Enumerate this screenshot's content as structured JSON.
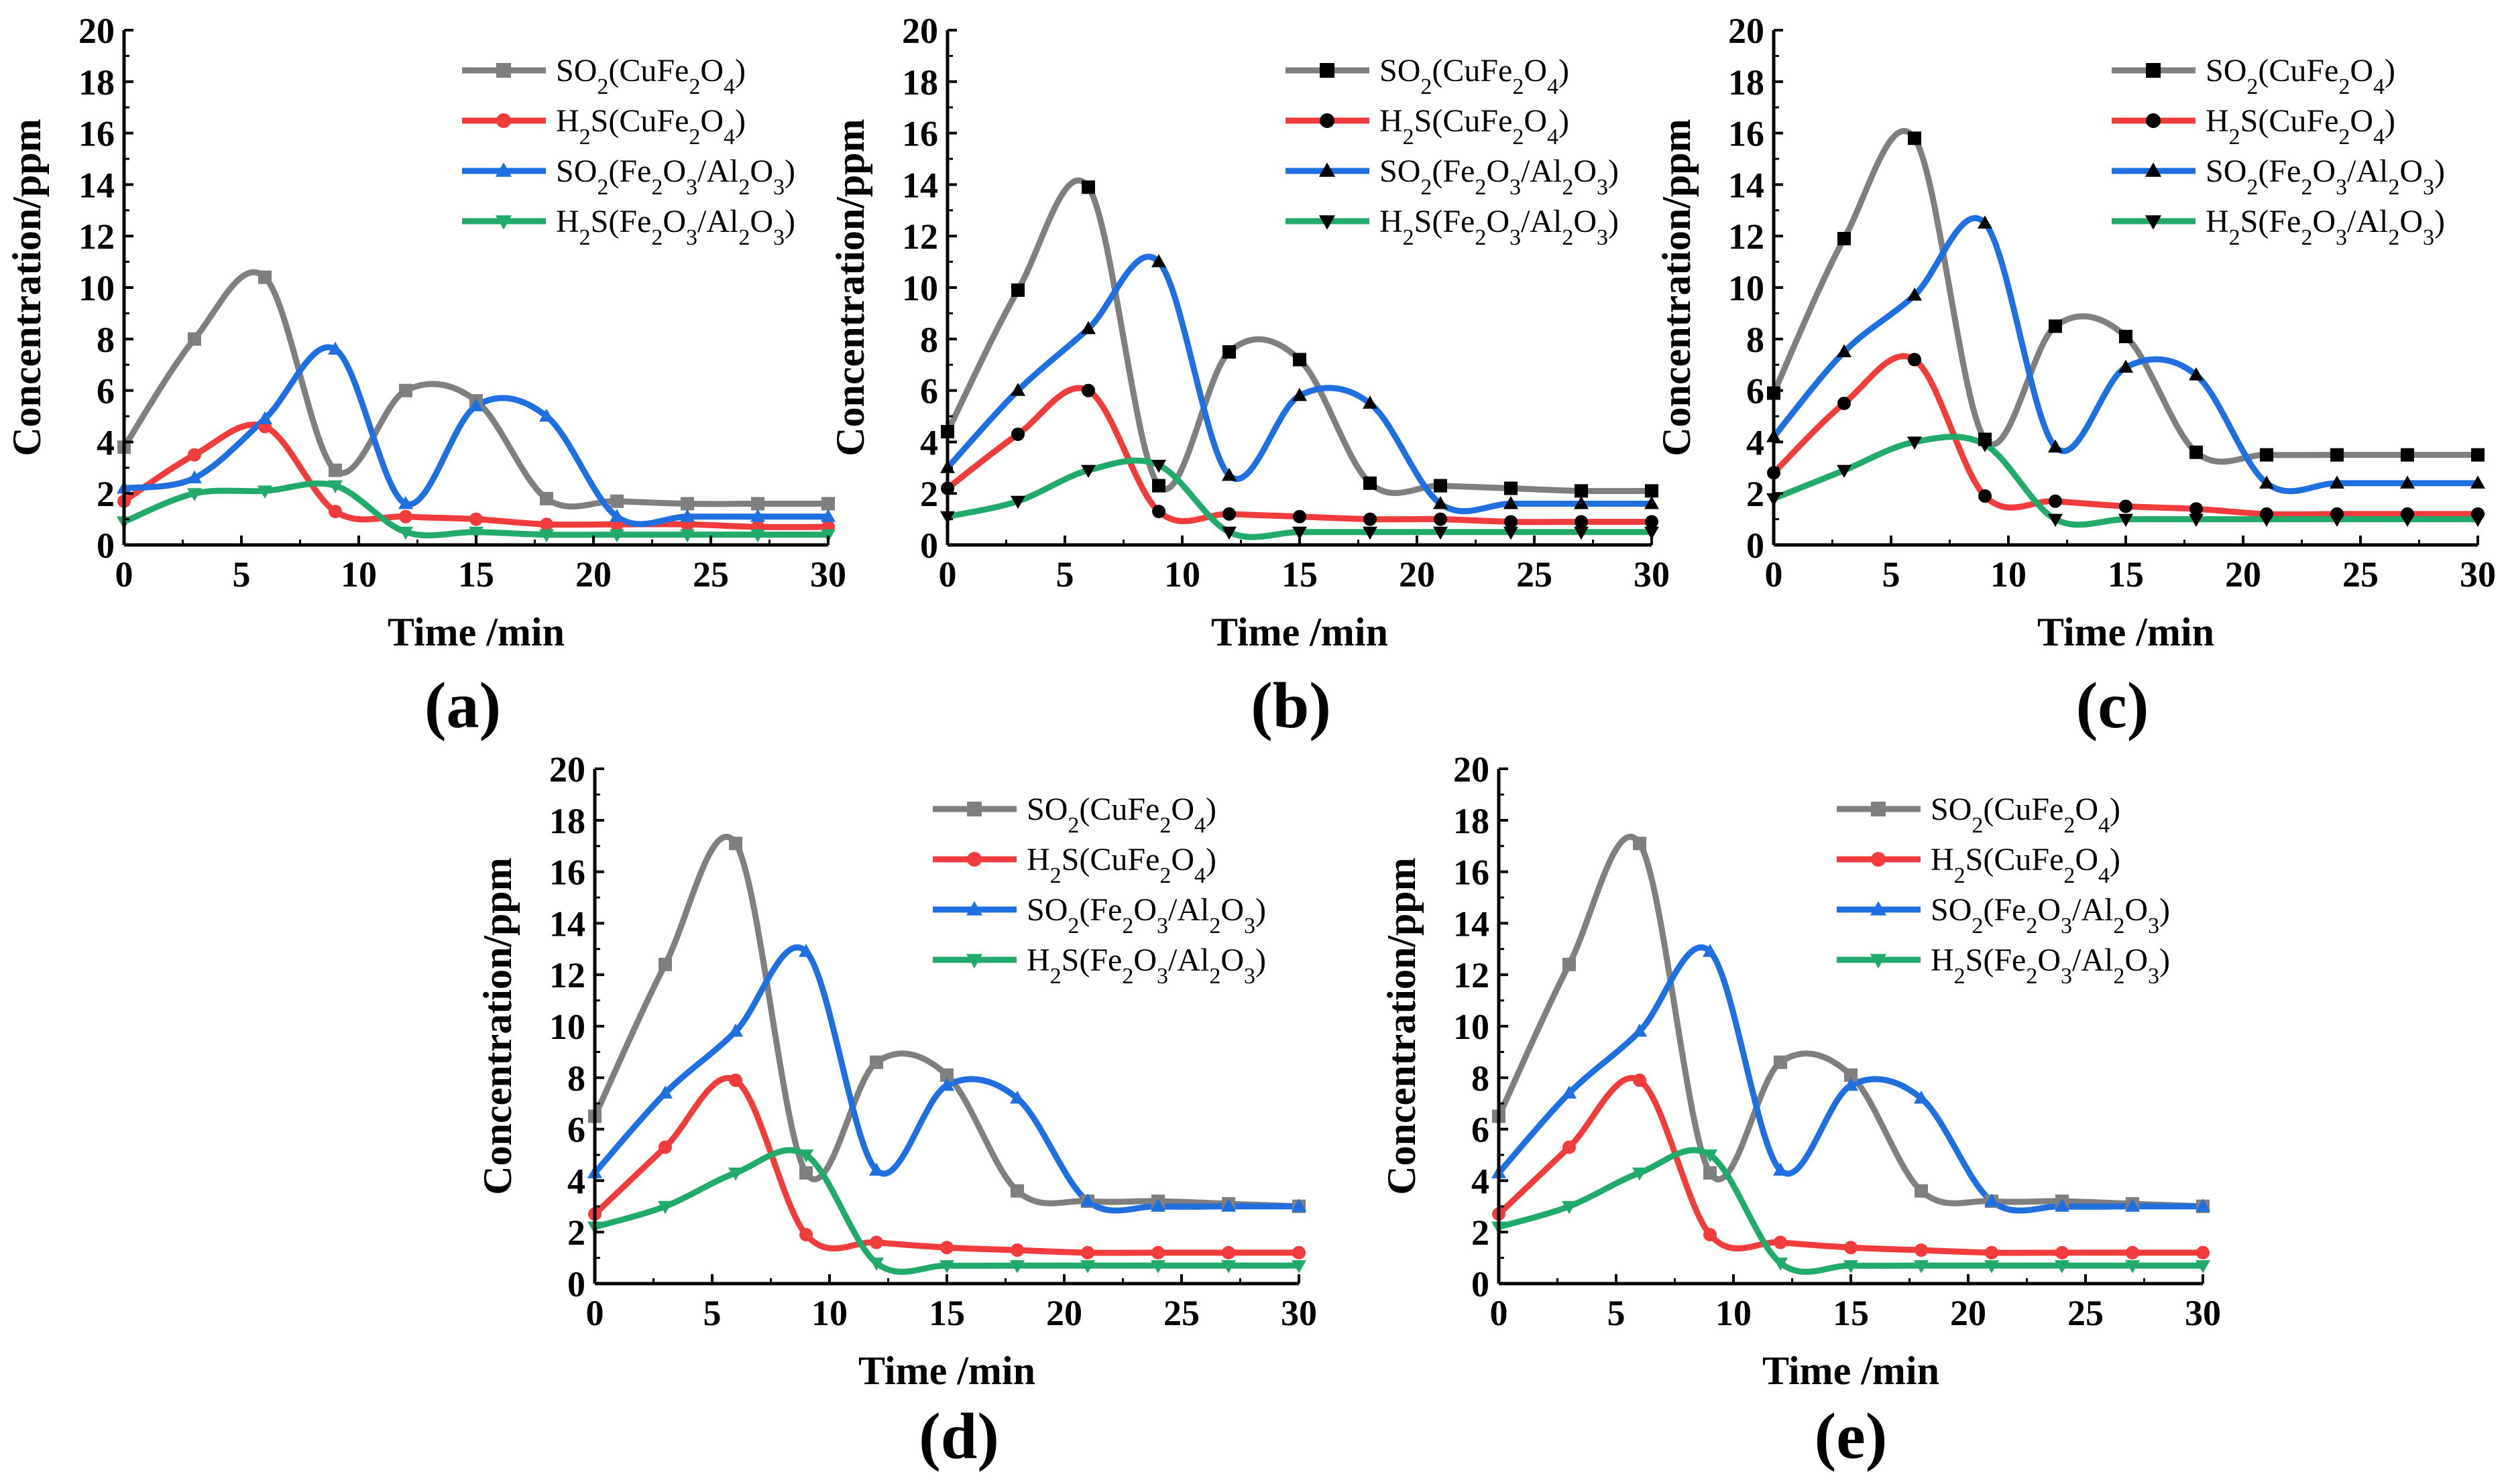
{
  "colors": {
    "SO2(CuFe2O4)": "#7f7f7f",
    "H2S(CuFe2O4)": "#f03c3c",
    "SO2(Fe2O3/Al2O3)": "#1f6fe0",
    "H2S(Fe2O3/Al2O3)": "#22aa6a"
  },
  "markers": {
    "SO2(CuFe2O4)": "square",
    "H2S(CuFe2O4)": "circle",
    "SO2(Fe2O3/Al2O3)": "triangle-up",
    "H2S(Fe2O3/Al2O3)": "triangle-down"
  },
  "chart_data": [
    {
      "panel": "(a)",
      "type": "line",
      "marker_style": "colored",
      "xlabel": "Time /min",
      "ylabel": "Concentration/ppm",
      "xlim": [
        0,
        30
      ],
      "ylim": [
        0,
        20
      ],
      "xticks": [
        0,
        5,
        10,
        15,
        20,
        25,
        30
      ],
      "yticks": [
        0,
        2,
        4,
        6,
        8,
        10,
        12,
        14,
        16,
        18,
        20
      ],
      "legend": "top-right",
      "x": [
        0,
        3,
        6,
        9,
        12,
        15,
        18,
        21,
        24,
        27,
        30
      ],
      "series": [
        {
          "name": "SO2(CuFe2O4)",
          "values": [
            3.8,
            8.0,
            10.4,
            2.9,
            6.0,
            5.6,
            1.8,
            1.7,
            1.6,
            1.6,
            1.6
          ]
        },
        {
          "name": "H2S(CuFe2O4)",
          "values": [
            1.7,
            3.5,
            4.6,
            1.3,
            1.1,
            1.0,
            0.8,
            0.8,
            0.8,
            0.7,
            0.7
          ]
        },
        {
          "name": "SO2(Fe2O3/Al2O3)",
          "values": [
            2.2,
            2.6,
            4.9,
            7.6,
            1.6,
            5.4,
            5.0,
            1.1,
            1.1,
            1.1,
            1.1
          ]
        },
        {
          "name": "H2S(Fe2O3/Al2O3)",
          "values": [
            0.9,
            2.0,
            2.1,
            2.3,
            0.5,
            0.5,
            0.4,
            0.4,
            0.4,
            0.4,
            0.4
          ]
        }
      ]
    },
    {
      "panel": "(b)",
      "type": "line",
      "marker_style": "black",
      "xlabel": "Time /min",
      "ylabel": "Concentration/ppm",
      "xlim": [
        0,
        30
      ],
      "ylim": [
        0,
        20
      ],
      "xticks": [
        0,
        5,
        10,
        15,
        20,
        25,
        30
      ],
      "yticks": [
        0,
        2,
        4,
        6,
        8,
        10,
        12,
        14,
        16,
        18,
        20
      ],
      "legend": "top-right",
      "x": [
        0,
        3,
        6,
        9,
        12,
        15,
        18,
        21,
        24,
        27,
        30
      ],
      "series": [
        {
          "name": "SO2(CuFe2O4)",
          "values": [
            4.4,
            9.9,
            13.9,
            2.3,
            7.5,
            7.2,
            2.4,
            2.3,
            2.2,
            2.1,
            2.1
          ]
        },
        {
          "name": "H2S(CuFe2O4)",
          "values": [
            2.2,
            4.3,
            6.0,
            1.3,
            1.2,
            1.1,
            1.0,
            1.0,
            0.9,
            0.9,
            0.9
          ]
        },
        {
          "name": "SO2(Fe2O3/Al2O3)",
          "values": [
            3.0,
            6.0,
            8.4,
            11.0,
            2.7,
            5.8,
            5.5,
            1.6,
            1.6,
            1.6,
            1.6
          ]
        },
        {
          "name": "H2S(Fe2O3/Al2O3)",
          "values": [
            1.1,
            1.7,
            2.9,
            3.1,
            0.5,
            0.5,
            0.5,
            0.5,
            0.5,
            0.5,
            0.5
          ]
        }
      ]
    },
    {
      "panel": "(c)",
      "type": "line",
      "marker_style": "black",
      "xlabel": "Time /min",
      "ylabel": "Concentration/ppm",
      "xlim": [
        0,
        30
      ],
      "ylim": [
        0,
        20
      ],
      "xticks": [
        0,
        5,
        10,
        15,
        20,
        25,
        30
      ],
      "yticks": [
        0,
        2,
        4,
        6,
        8,
        10,
        12,
        14,
        16,
        18,
        20
      ],
      "legend": "top-right",
      "x": [
        0,
        3,
        6,
        9,
        12,
        15,
        18,
        21,
        24,
        27,
        30
      ],
      "series": [
        {
          "name": "SO2(CuFe2O4)",
          "values": [
            5.9,
            11.9,
            15.8,
            4.1,
            8.5,
            8.1,
            3.6,
            3.5,
            3.5,
            3.5,
            3.5
          ]
        },
        {
          "name": "H2S(CuFe2O4)",
          "values": [
            2.8,
            5.5,
            7.2,
            1.9,
            1.7,
            1.5,
            1.4,
            1.2,
            1.2,
            1.2,
            1.2
          ]
        },
        {
          "name": "SO2(Fe2O3/Al2O3)",
          "values": [
            4.2,
            7.5,
            9.7,
            12.5,
            3.8,
            6.9,
            6.6,
            2.4,
            2.4,
            2.4,
            2.4
          ]
        },
        {
          "name": "H2S(Fe2O3/Al2O3)",
          "values": [
            1.8,
            2.9,
            4.0,
            3.9,
            1.0,
            1.0,
            1.0,
            1.0,
            1.0,
            1.0,
            1.0
          ]
        }
      ]
    },
    {
      "panel": "(d)",
      "type": "line",
      "marker_style": "colored",
      "xlabel": "Time /min",
      "ylabel": "Concentration/ppm",
      "xlim": [
        0,
        30
      ],
      "ylim": [
        0,
        20
      ],
      "xticks": [
        0,
        5,
        10,
        15,
        20,
        25,
        30
      ],
      "yticks": [
        0,
        2,
        4,
        6,
        8,
        10,
        12,
        14,
        16,
        18,
        20
      ],
      "legend": "top-right",
      "x": [
        0,
        3,
        6,
        9,
        12,
        15,
        18,
        21,
        24,
        27,
        30
      ],
      "series": [
        {
          "name": "SO2(CuFe2O4)",
          "values": [
            6.5,
            12.4,
            17.1,
            4.3,
            8.6,
            8.1,
            3.6,
            3.2,
            3.2,
            3.1,
            3.0
          ]
        },
        {
          "name": "H2S(CuFe2O4)",
          "values": [
            2.7,
            5.3,
            7.9,
            1.9,
            1.6,
            1.4,
            1.3,
            1.2,
            1.2,
            1.2,
            1.2
          ]
        },
        {
          "name": "SO2(Fe2O3/Al2O3)",
          "values": [
            4.3,
            7.4,
            9.8,
            12.9,
            4.4,
            7.7,
            7.2,
            3.2,
            3.0,
            3.0,
            3.0
          ]
        },
        {
          "name": "H2S(Fe2O3/Al2O3)",
          "values": [
            2.2,
            3.0,
            4.3,
            5.0,
            0.8,
            0.7,
            0.7,
            0.7,
            0.7,
            0.7,
            0.7
          ]
        }
      ]
    },
    {
      "panel": "(e)",
      "type": "line",
      "marker_style": "colored",
      "xlabel": "Time /min",
      "ylabel": "Concentration/ppm",
      "xlim": [
        0,
        30
      ],
      "ylim": [
        0,
        20
      ],
      "xticks": [
        0,
        5,
        10,
        15,
        20,
        25,
        30
      ],
      "yticks": [
        0,
        2,
        4,
        6,
        8,
        10,
        12,
        14,
        16,
        18,
        20
      ],
      "legend": "top-right",
      "x": [
        0,
        3,
        6,
        9,
        12,
        15,
        18,
        21,
        24,
        27,
        30
      ],
      "series": [
        {
          "name": "SO2(CuFe2O4)",
          "values": [
            6.5,
            12.4,
            17.1,
            4.3,
            8.6,
            8.1,
            3.6,
            3.2,
            3.2,
            3.1,
            3.0
          ]
        },
        {
          "name": "H2S(CuFe2O4)",
          "values": [
            2.7,
            5.3,
            7.9,
            1.9,
            1.6,
            1.4,
            1.3,
            1.2,
            1.2,
            1.2,
            1.2
          ]
        },
        {
          "name": "SO2(Fe2O3/Al2O3)",
          "values": [
            4.3,
            7.4,
            9.8,
            12.9,
            4.4,
            7.7,
            7.2,
            3.2,
            3.0,
            3.0,
            3.0
          ]
        },
        {
          "name": "H2S(Fe2O3/Al2O3)",
          "values": [
            2.2,
            3.0,
            4.3,
            5.0,
            0.8,
            0.7,
            0.7,
            0.7,
            0.7,
            0.7,
            0.7
          ]
        }
      ]
    }
  ]
}
